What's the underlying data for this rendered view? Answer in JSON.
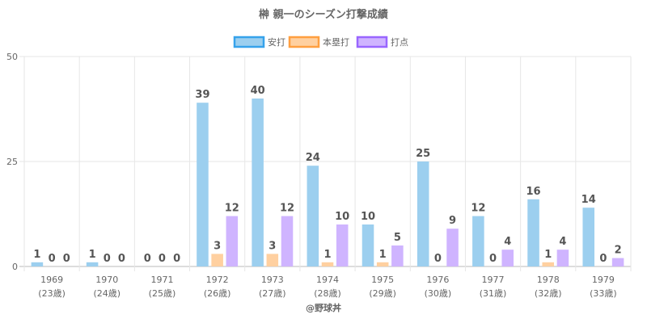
{
  "chart_data": {
    "type": "bar",
    "title": "榊 親一のシーズン打撃成績",
    "categories": [
      "1969",
      "1970",
      "1971",
      "1972",
      "1973",
      "1974",
      "1975",
      "1976",
      "1977",
      "1978",
      "1979"
    ],
    "category_sublabels": [
      "(23歳)",
      "(24歳)",
      "(25歳)",
      "(26歳)",
      "(27歳)",
      "(28歳)",
      "(29歳)",
      "(30歳)",
      "(31歳)",
      "(32歳)",
      "(33歳)"
    ],
    "series": [
      {
        "name": "安打",
        "values": [
          1,
          1,
          0,
          39,
          40,
          24,
          10,
          25,
          12,
          16,
          14
        ],
        "fill": "#9ccfef",
        "stroke": "#36a2eb"
      },
      {
        "name": "本塁打",
        "values": [
          0,
          0,
          0,
          3,
          3,
          1,
          1,
          0,
          0,
          1,
          0
        ],
        "fill": "#ffd0a0",
        "stroke": "#ff9f40"
      },
      {
        "name": "打点",
        "values": [
          0,
          0,
          0,
          12,
          12,
          10,
          5,
          9,
          4,
          4,
          2
        ],
        "fill": "#cfb4ff",
        "stroke": "#9966ff"
      }
    ],
    "ylim": [
      0,
      50
    ],
    "yticks": [
      0,
      25,
      50
    ],
    "grid": true,
    "legend_position": "top",
    "xlabel": "",
    "ylabel": "",
    "credit": "@野球丼"
  }
}
